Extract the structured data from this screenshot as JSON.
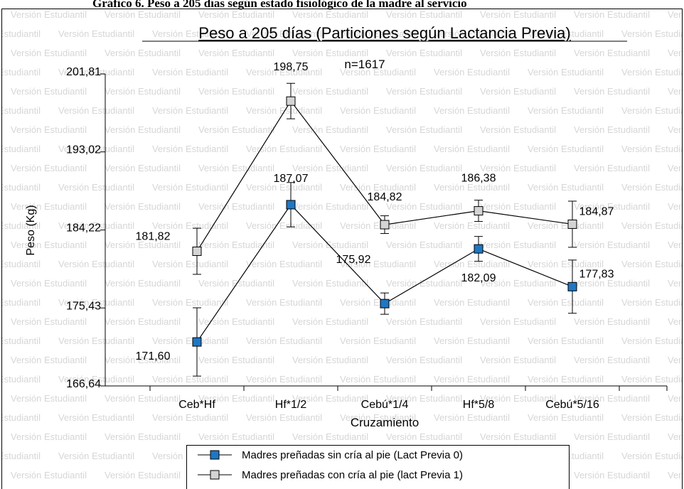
{
  "caption": "Gráfico 6. Peso a 205 días según estado fisiológico de la madre al servicio",
  "watermark": "Versión Estudiantil",
  "chart_data": {
    "type": "line",
    "title": "Peso a 205 días (Particiones según Lactancia Previa)",
    "annotation": "n=1617",
    "x_label": "Cruzamiento",
    "y_label": "Peso (Kg)",
    "categories": [
      "Ceb*Hf",
      "Hf*1/2",
      "Cebú*1/4",
      "Hf*5/8",
      "Cebú*5/16"
    ],
    "ylim": [
      166.64,
      201.81
    ],
    "yticks": [
      {
        "value": 166.64,
        "label": "166,64"
      },
      {
        "value": 175.43,
        "label": "175,43"
      },
      {
        "value": 184.22,
        "label": "184,22"
      },
      {
        "value": 193.02,
        "label": "193,02"
      },
      {
        "value": 201.81,
        "label": "201,81"
      }
    ],
    "legend": "bottom",
    "series": [
      {
        "name": "Madres preñadas sin cría al pie (Lact Previa 0)",
        "color": "#1f77c4",
        "values": [
          171.6,
          187.07,
          175.92,
          182.09,
          177.83
        ],
        "value_labels": [
          "171,60",
          "187,07",
          "175,92",
          "182,09",
          "177,83"
        ],
        "errors": [
          3.85,
          2.5,
          1.2,
          1.4,
          3.0
        ]
      },
      {
        "name": "Madres preñadas con cría al pie (lact Previa 1)",
        "color": "#d4d4d4",
        "values": [
          181.82,
          198.75,
          184.82,
          186.38,
          184.87
        ],
        "value_labels": [
          "181,82",
          "198,75",
          "184,82",
          "186,38",
          "184,87"
        ],
        "errors": [
          2.6,
          2.0,
          1.0,
          1.2,
          2.6
        ]
      }
    ]
  }
}
